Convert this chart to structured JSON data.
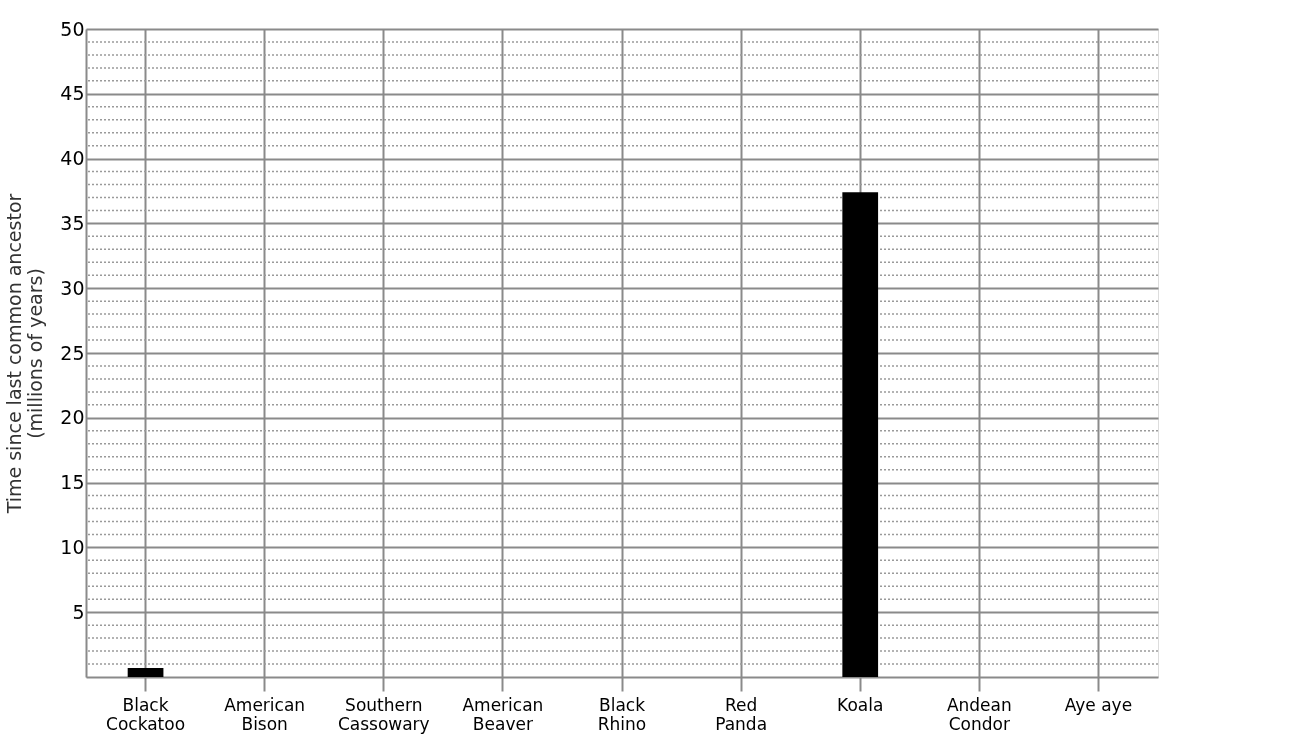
{
  "chart_data": {
    "type": "bar",
    "ylabel": "Time since last common ancestor (millions of years)",
    "categories": [
      "Black Cockatoo",
      "American Bison",
      "Southern Cassowary",
      "American Beaver",
      "Black Rhino",
      "Red Panda",
      "Koala",
      "Andean Condor",
      "Aye aye"
    ],
    "values": [
      0.7,
      null,
      null,
      null,
      null,
      null,
      37.4,
      null,
      null
    ],
    "color": "#000000",
    "ylim": [
      0,
      50
    ],
    "yticks": [
      {
        "value": 1,
        "label": null
      },
      {
        "value": 2,
        "label": null
      },
      {
        "value": 3,
        "label": null
      },
      {
        "value": 4,
        "label": null
      },
      5,
      {
        "value": 6,
        "label": null
      },
      {
        "value": 7,
        "label": null
      },
      {
        "value": 8,
        "label": null
      },
      {
        "value": 9,
        "label": null
      },
      10,
      {
        "value": 11,
        "label": null
      },
      {
        "value": 12,
        "label": null
      },
      {
        "value": 13,
        "label": null
      },
      {
        "value": 14,
        "label": null
      },
      15,
      {
        "value": 16,
        "label": null
      },
      {
        "value": 17,
        "label": null
      },
      {
        "value": 18,
        "label": null
      },
      {
        "value": 19,
        "label": null
      },
      20,
      {
        "value": 21,
        "label": null
      },
      {
        "value": 22,
        "label": null
      },
      {
        "value": 23,
        "label": null
      },
      {
        "value": 24,
        "label": null
      },
      25,
      {
        "value": 26,
        "label": null
      },
      {
        "value": 27,
        "label": null
      },
      {
        "value": 28,
        "label": null
      },
      {
        "value": 29,
        "label": null
      },
      30,
      {
        "value": 31,
        "label": null
      },
      {
        "value": 32,
        "label": null
      },
      {
        "value": 33,
        "label": null
      },
      {
        "value": 34,
        "label": null
      },
      35,
      {
        "value": 36,
        "label": null
      },
      {
        "value": 37,
        "label": null
      },
      {
        "value": 38,
        "label": null
      },
      {
        "value": 39,
        "label": null
      },
      40,
      {
        "value": 41,
        "label": null
      },
      {
        "value": 42,
        "label": null
      },
      {
        "value": 43,
        "label": null
      },
      {
        "value": 44,
        "label": null
      },
      45,
      {
        "value": 46,
        "label": null
      },
      {
        "value": 47,
        "label": null
      },
      {
        "value": 48,
        "label": null
      },
      {
        "value": 49,
        "label": null
      },
      50
    ],
    "grid": true
  }
}
